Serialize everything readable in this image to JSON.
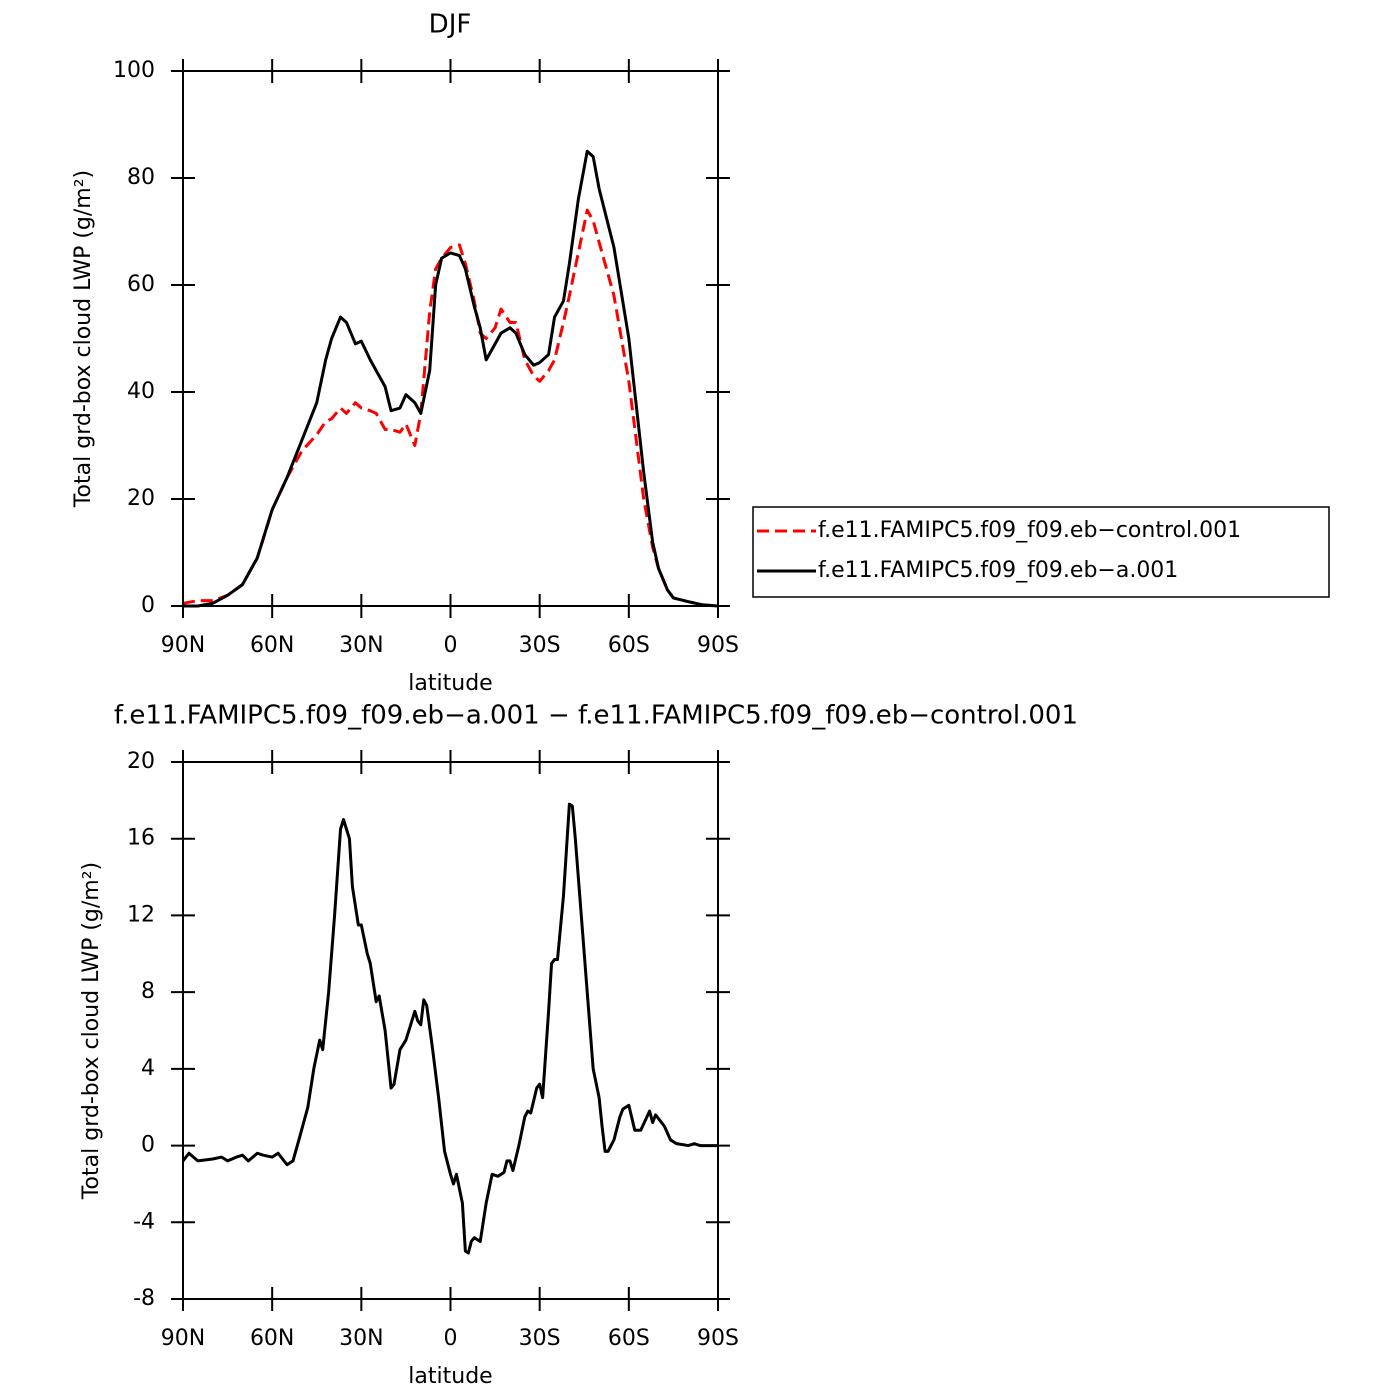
{
  "chart_data": [
    {
      "type": "line",
      "title": "DJF",
      "xlabel": "latitude",
      "ylabel": "Total grd-box cloud LWP (g/m²)",
      "xlim": [
        90,
        -90
      ],
      "ylim": [
        0,
        100
      ],
      "xticks": [
        {
          "value": 90,
          "label": "90N"
        },
        {
          "value": 60,
          "label": "60N"
        },
        {
          "value": 30,
          "label": "30N"
        },
        0,
        {
          "value": -30,
          "label": "30S"
        },
        {
          "value": -60,
          "label": "60S"
        },
        {
          "value": -90,
          "label": "90S"
        }
      ],
      "yticks": [
        0,
        20,
        40,
        60,
        80,
        100
      ],
      "legend": "right",
      "x": [
        90,
        85,
        80,
        75,
        70,
        65,
        60,
        55,
        50,
        45,
        42,
        40,
        37,
        35,
        32,
        30,
        27,
        25,
        22,
        20,
        17,
        15,
        12,
        10,
        7,
        5,
        3,
        0,
        -3,
        -5,
        -8,
        -10,
        -12,
        -15,
        -17,
        -20,
        -22,
        -25,
        -28,
        -30,
        -33,
        -35,
        -38,
        -40,
        -43,
        -46,
        -48,
        -50,
        -55,
        -60,
        -65,
        -68,
        -70,
        -73,
        -75,
        -80,
        -85,
        -90
      ],
      "series": [
        {
          "name": "f.e11.FAMIPC5.f09_f09.eb−control.001",
          "color": "#ff0000",
          "dashed": true,
          "values": [
            0.5,
            1,
            1,
            2,
            4,
            9,
            18,
            24,
            29,
            32,
            34.5,
            35,
            37,
            36,
            38,
            37,
            36.5,
            36,
            33,
            33,
            32.5,
            34,
            30,
            36,
            55,
            63,
            65,
            67,
            67.5,
            64,
            57,
            51,
            50,
            52,
            55.5,
            53,
            53,
            46,
            43,
            42,
            44,
            46,
            53,
            58,
            66,
            74,
            72,
            68,
            58,
            42,
            20,
            11,
            7,
            3,
            1.5,
            0.8,
            0.2,
            0
          ]
        },
        {
          "name": "f.e11.FAMIPC5.f09_f09.eb−a.001",
          "color": "#000000",
          "dashed": false,
          "values": [
            0,
            0,
            0.5,
            2,
            4,
            9,
            18,
            24,
            31,
            38,
            46,
            50,
            54,
            53,
            49,
            49.5,
            46,
            44,
            41,
            36.5,
            37,
            39.5,
            38,
            36,
            44,
            60,
            65,
            66,
            65.5,
            63,
            56,
            52,
            46,
            49,
            51,
            52,
            51,
            47,
            45,
            45.5,
            47,
            54,
            57,
            64,
            76,
            85,
            84,
            78,
            67,
            50,
            25,
            12,
            7,
            3,
            1.5,
            0.8,
            0.2,
            0
          ]
        }
      ]
    },
    {
      "type": "line",
      "title": "f.e11.FAMIPC5.f09_f09.eb−a.001 − f.e11.FAMIPC5.f09_f09.eb−control.001",
      "xlabel": "latitude",
      "ylabel": "Total grd-box cloud LWP (g/m²)",
      "xlim": [
        90,
        -90
      ],
      "ylim": [
        -8,
        20
      ],
      "xticks": [
        {
          "value": 90,
          "label": "90N"
        },
        {
          "value": 60,
          "label": "60N"
        },
        {
          "value": 30,
          "label": "30N"
        },
        0,
        {
          "value": -30,
          "label": "30S"
        },
        {
          "value": -60,
          "label": "60S"
        },
        {
          "value": -90,
          "label": "90S"
        }
      ],
      "yticks": [
        -8,
        -4,
        0,
        4,
        8,
        12,
        16,
        20
      ],
      "color": "#000000",
      "x": [
        90,
        88,
        85,
        80,
        77,
        75,
        72,
        70,
        68,
        65,
        63,
        60,
        58,
        55,
        53,
        51,
        48,
        46,
        44,
        43,
        41,
        39,
        37,
        36,
        34,
        33,
        31,
        30,
        28,
        27,
        25,
        24,
        22,
        20,
        19,
        17,
        15,
        13,
        12,
        11,
        10,
        9,
        8,
        6,
        4,
        2,
        0,
        -1,
        -2,
        -4,
        -5,
        -6,
        -7,
        -8,
        -10,
        -12,
        -14,
        -16,
        -18,
        -19,
        -20,
        -21,
        -23,
        -25,
        -26,
        -27,
        -29,
        -30,
        -31,
        -33,
        -34,
        -35,
        -36,
        -38,
        -40,
        -41,
        -42,
        -44,
        -46,
        -48,
        -50,
        -51,
        -52,
        -53,
        -55,
        -57,
        -58,
        -60,
        -62,
        -64,
        -67,
        -68,
        -69,
        -70,
        -72,
        -74,
        -76,
        -80,
        -82,
        -84,
        -87,
        -90
      ],
      "values": [
        -0.8,
        -0.4,
        -0.8,
        -0.7,
        -0.6,
        -0.8,
        -0.6,
        -0.5,
        -0.8,
        -0.4,
        -0.5,
        -0.6,
        -0.4,
        -1,
        -0.8,
        0.3,
        2,
        4,
        5.5,
        5,
        8,
        12,
        16.5,
        17,
        16,
        13.5,
        11.5,
        11.5,
        10,
        9.5,
        7.5,
        7.8,
        6,
        3,
        3.2,
        5,
        5.5,
        6.5,
        7,
        6.5,
        6.3,
        7.6,
        7.3,
        5,
        2.5,
        -0.3,
        -1.5,
        -2,
        -1.5,
        -3,
        -5.5,
        -5.6,
        -5,
        -4.8,
        -5,
        -3,
        -1.5,
        -1.6,
        -1.4,
        -0.8,
        -0.8,
        -1.3,
        0,
        1.5,
        1.8,
        1.7,
        3,
        3.2,
        2.5,
        7,
        9.5,
        9.7,
        9.7,
        13,
        17.8,
        17.7,
        16,
        12,
        8,
        4,
        2.5,
        1,
        -0.3,
        -0.3,
        0.3,
        1.5,
        1.9,
        2.1,
        0.8,
        0.8,
        1.8,
        1.2,
        1.6,
        1.4,
        1,
        0.3,
        0.1,
        0,
        0.1,
        0,
        0,
        0
      ]
    }
  ]
}
